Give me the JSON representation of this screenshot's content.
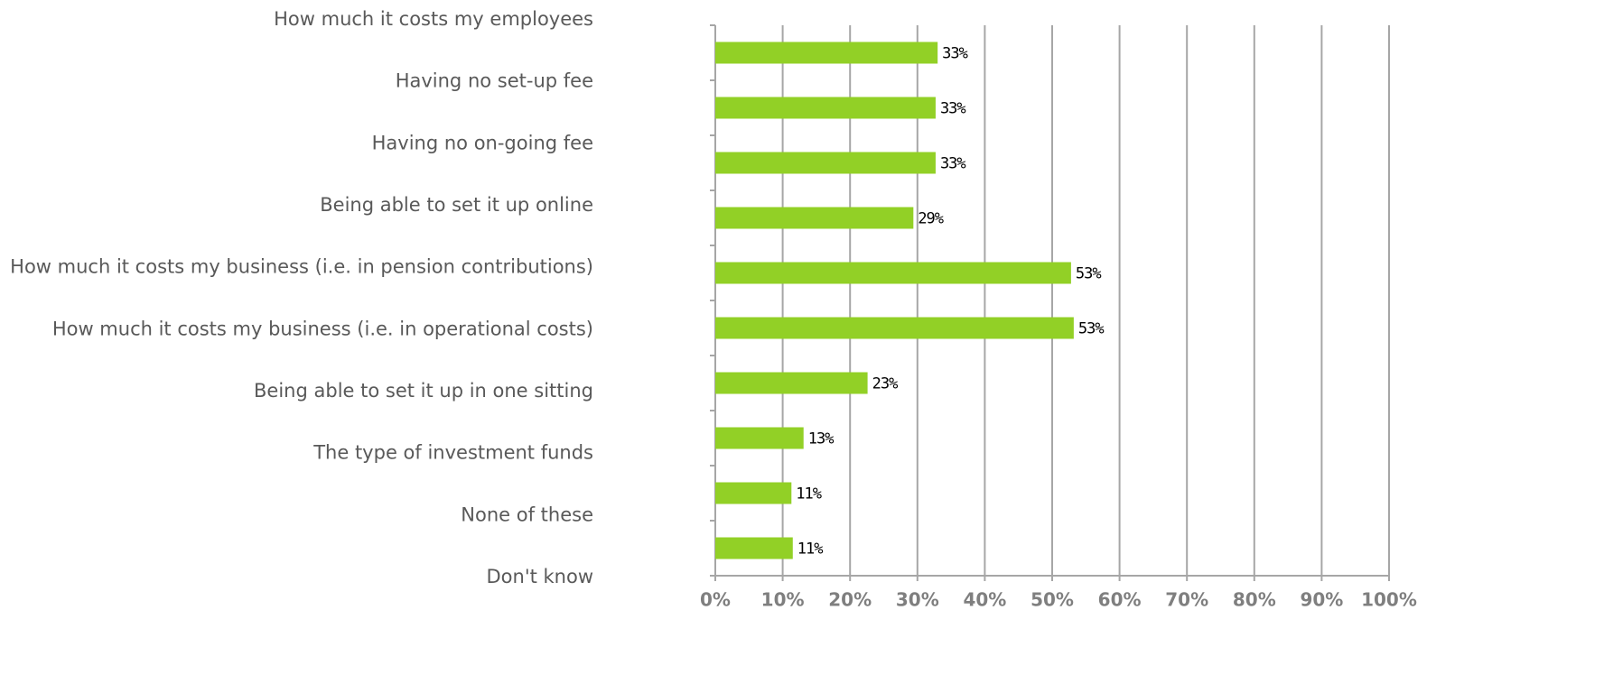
{
  "chart_data": {
    "type": "bar",
    "orientation": "horizontal",
    "categories": [
      "How much it costs my employees",
      "Having no set-up fee",
      "Having no on-going fee",
      "Being able to set it up online",
      "How much it costs my business (i.e. in pension contributions)",
      "How much it costs my business (i.e. in operational costs)",
      "Being able to set it up in one sitting",
      "The type of investment funds",
      "None of these",
      "Don't know"
    ],
    "values": [
      33,
      32.7,
      32.7,
      29.4,
      52.8,
      53.2,
      22.6,
      13.1,
      11.3,
      11.5
    ],
    "value_labels": [
      "33%",
      "33%",
      "33%",
      "29%",
      "53%",
      "53%",
      "23%",
      "13%",
      "11%",
      "11%"
    ],
    "color": "#92d026",
    "xlim": [
      0,
      100
    ],
    "xticks": [
      {
        "value": 0,
        "label": "0%"
      },
      {
        "value": 10,
        "label": "10%"
      },
      {
        "value": 20,
        "label": "20%"
      },
      {
        "value": 30,
        "label": "30%"
      },
      {
        "value": 40,
        "label": "40%"
      },
      {
        "value": 50,
        "label": "50%"
      },
      {
        "value": 60,
        "label": "60%"
      },
      {
        "value": 70,
        "label": "70%"
      },
      {
        "value": 80,
        "label": "80%"
      },
      {
        "value": 90,
        "label": "90%"
      },
      {
        "value": 100,
        "label": "100%"
      }
    ],
    "grid": true
  }
}
